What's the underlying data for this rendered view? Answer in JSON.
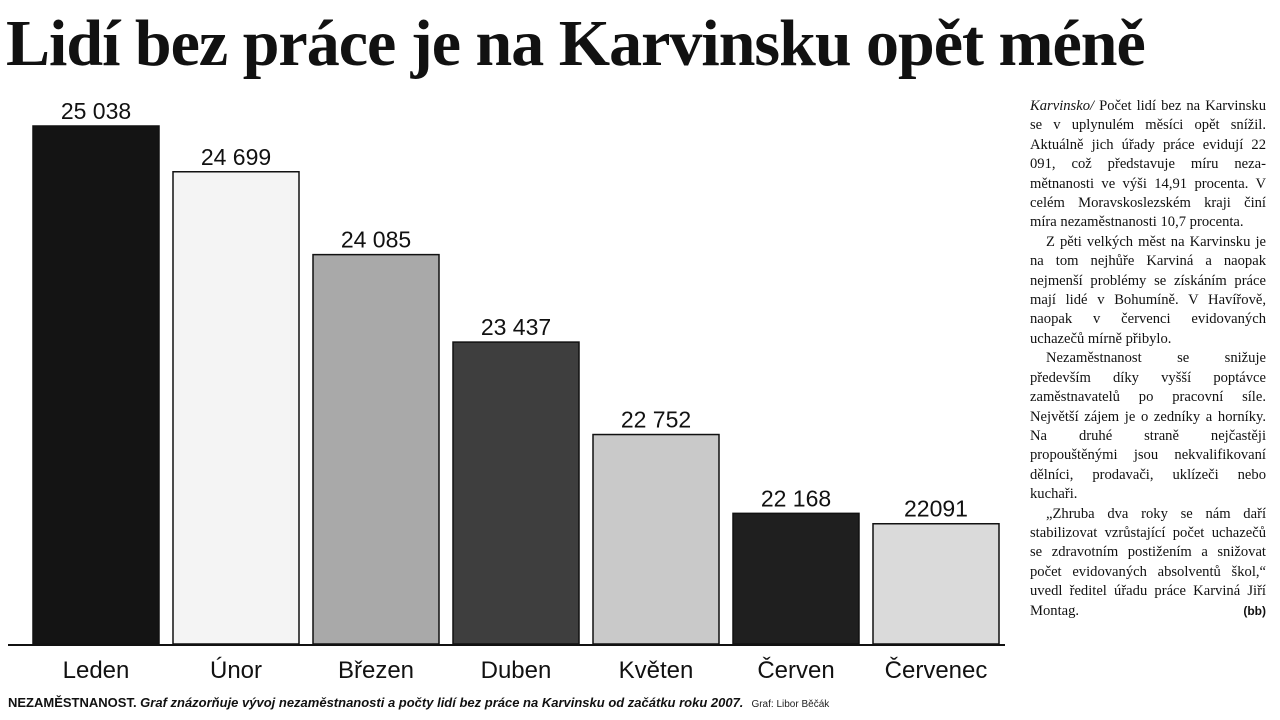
{
  "headline": "Lidí bez práce je na Karvinsku opět méně",
  "chart_data": {
    "type": "bar",
    "title": "",
    "xlabel": "",
    "ylabel": "",
    "categories": [
      "Leden",
      "Únor",
      "Březen",
      "Duben",
      "Květen",
      "Červen",
      "Červenec"
    ],
    "values": [
      25038,
      24699,
      24085,
      23437,
      22752,
      22168,
      22091
    ],
    "value_labels": [
      "25 038",
      "24 699",
      "24 085",
      "23 437",
      "22 752",
      "22 168",
      "22091"
    ],
    "bar_colors": [
      "#141414",
      "#f4f4f4",
      "#a9a9a9",
      "#3e3e3e",
      "#c9c9c9",
      "#1f1f1f",
      "#dadada"
    ],
    "grid": false,
    "legend": "none"
  },
  "caption": {
    "lead": "NEZAMĚSTNANOST.",
    "text": " Graf znázorňuje vývoj nezaměstnanosti a počty lidí bez práce na Karvinsku od začátku roku 2007.",
    "credit": "Graf: Libor Běčák"
  },
  "article": {
    "dateline": "Karvinsko/",
    "paragraphs": [
      " Počet lidí bez na Karvinsku se v uplynulém měsíci opět snížil. Aktuálně jich úřady práce evidují 22 091, což představuje míru neza­mětnanosti ve výši 14,91 pro­centa. V celém Moravskoslez­ském kraji činí míra neza­městnanosti 10,7 procenta.",
      "Z pěti velkých měst na Kar­vinsku je na tom nejhůře Kar­viná a naopak nejmenší pro­blémy se získáním práce mají lidé v Bohumíně. V Havířově, naopak v červenci evidova­ných uchazečů mírně přibylo.",
      "Nezaměstnanost se snižuje především díky vyšší poptávce zaměstnavatelů po pracovní síle. Největší zájem je o zední­ky a horníky. Na druhé straně nejčastěji propouštěnými jsou nekvalifikovaní dělníci, pro­davači, uklízeči nebo kuchaři.",
      "„Zhruba dva roky se nám daří stabilizovat vzrůstající počet uchazečů se zdravotním postižením a snižovat počet evidovaných absolventů škol,“ uvedl ředitel úřadu prá­ce Karviná Jiří Montag."
    ],
    "signature": "(bb)"
  }
}
